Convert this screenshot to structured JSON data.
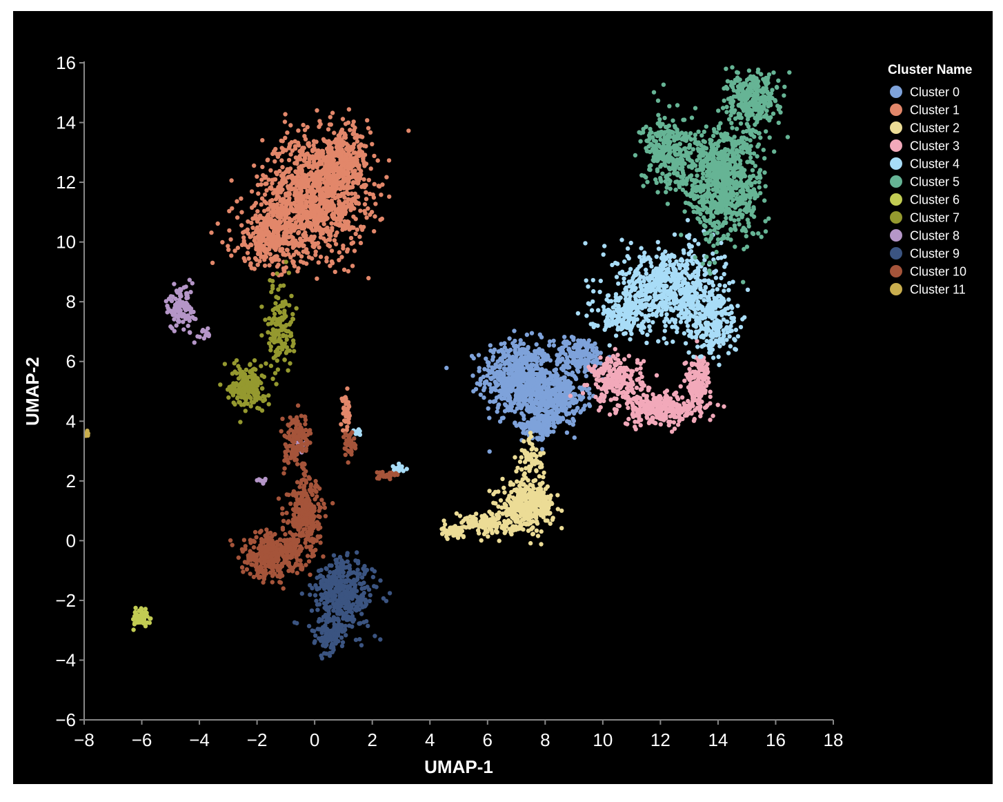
{
  "chart_data": {
    "type": "scatter",
    "title": "",
    "xlabel": "UMAP-1",
    "ylabel": "UMAP-2",
    "xlim": [
      -8,
      18
    ],
    "ylim": [
      -6,
      16
    ],
    "x_ticks": [
      -8,
      -6,
      -4,
      -2,
      0,
      2,
      4,
      6,
      8,
      10,
      12,
      14,
      16,
      18
    ],
    "y_ticks": [
      -6,
      -4,
      -2,
      0,
      2,
      4,
      6,
      8,
      10,
      12,
      14,
      16
    ],
    "grid": false,
    "background": "#000000",
    "legend": {
      "title": "Cluster Name",
      "position": "top-right"
    },
    "series": [
      {
        "name": "Cluster 0",
        "color": "#7ea2da",
        "blobs": [
          {
            "cx": 7.0,
            "cy": 5.5,
            "sx": 0.8,
            "sy": 0.8,
            "n": 520
          },
          {
            "cx": 8.2,
            "cy": 4.8,
            "sx": 0.8,
            "sy": 0.6,
            "n": 420
          },
          {
            "cx": 9.2,
            "cy": 6.2,
            "sx": 0.6,
            "sy": 0.4,
            "n": 200
          },
          {
            "cx": 7.8,
            "cy": 3.9,
            "sx": 0.4,
            "sy": 0.3,
            "n": 120
          }
        ]
      },
      {
        "name": "Cluster 1",
        "color": "#e2876a",
        "blobs": [
          {
            "cx": 0.0,
            "cy": 11.6,
            "sx": 1.2,
            "sy": 1.3,
            "n": 1100
          },
          {
            "cx": -1.5,
            "cy": 10.2,
            "sx": 0.9,
            "sy": 0.7,
            "n": 350
          },
          {
            "cx": 1.0,
            "cy": 12.8,
            "sx": 0.6,
            "sy": 0.6,
            "n": 250
          },
          {
            "cx": 1.1,
            "cy": 4.2,
            "sx": 0.12,
            "sy": 0.4,
            "n": 40
          }
        ]
      },
      {
        "name": "Cluster 2",
        "color": "#ecdc96",
        "blobs": [
          {
            "cx": 7.4,
            "cy": 1.2,
            "sx": 0.6,
            "sy": 0.5,
            "n": 360
          },
          {
            "cx": 6.0,
            "cy": 0.6,
            "sx": 0.8,
            "sy": 0.25,
            "n": 140
          },
          {
            "cx": 4.9,
            "cy": 0.3,
            "sx": 0.3,
            "sy": 0.12,
            "n": 50
          },
          {
            "cx": 7.5,
            "cy": 2.7,
            "sx": 0.3,
            "sy": 0.5,
            "n": 60
          }
        ]
      },
      {
        "name": "Cluster 3",
        "color": "#f2a9ba",
        "blobs": [
          {
            "cx": 10.5,
            "cy": 5.4,
            "sx": 0.6,
            "sy": 0.5,
            "n": 220
          },
          {
            "cx": 12.0,
            "cy": 4.4,
            "sx": 0.9,
            "sy": 0.35,
            "n": 280
          },
          {
            "cx": 13.3,
            "cy": 5.3,
            "sx": 0.3,
            "sy": 0.6,
            "n": 150
          }
        ]
      },
      {
        "name": "Cluster 4",
        "color": "#a8dcf7",
        "blobs": [
          {
            "cx": 12.3,
            "cy": 8.5,
            "sx": 1.2,
            "sy": 0.9,
            "n": 650
          },
          {
            "cx": 13.8,
            "cy": 7.3,
            "sx": 0.6,
            "sy": 0.8,
            "n": 250
          },
          {
            "cx": 10.6,
            "cy": 7.6,
            "sx": 0.7,
            "sy": 0.4,
            "n": 160
          },
          {
            "cx": 2.9,
            "cy": 2.4,
            "sx": 0.15,
            "sy": 0.08,
            "n": 25
          },
          {
            "cx": 1.5,
            "cy": 3.6,
            "sx": 0.1,
            "sy": 0.08,
            "n": 10
          }
        ]
      },
      {
        "name": "Cluster 5",
        "color": "#66b495",
        "blobs": [
          {
            "cx": 14.2,
            "cy": 12.0,
            "sx": 0.9,
            "sy": 1.3,
            "n": 800
          },
          {
            "cx": 12.3,
            "cy": 13.0,
            "sx": 0.6,
            "sy": 0.8,
            "n": 300
          },
          {
            "cx": 15.2,
            "cy": 14.8,
            "sx": 0.6,
            "sy": 0.6,
            "n": 300
          }
        ]
      },
      {
        "name": "Cluster 6",
        "color": "#c2cc53",
        "blobs": [
          {
            "cx": -6.0,
            "cy": -2.6,
            "sx": 0.2,
            "sy": 0.2,
            "n": 60
          }
        ]
      },
      {
        "name": "Cluster 7",
        "color": "#95992f",
        "blobs": [
          {
            "cx": -2.3,
            "cy": 5.2,
            "sx": 0.4,
            "sy": 0.5,
            "n": 200
          },
          {
            "cx": -1.2,
            "cy": 7.2,
            "sx": 0.3,
            "sy": 0.9,
            "n": 150
          }
        ]
      },
      {
        "name": "Cluster 8",
        "color": "#b596c8",
        "blobs": [
          {
            "cx": -4.6,
            "cy": 7.8,
            "sx": 0.3,
            "sy": 0.5,
            "n": 110
          },
          {
            "cx": -3.8,
            "cy": 6.9,
            "sx": 0.15,
            "sy": 0.1,
            "n": 15
          },
          {
            "cx": -1.8,
            "cy": 2.0,
            "sx": 0.1,
            "sy": 0.08,
            "n": 10
          },
          {
            "cx": -0.5,
            "cy": 3.2,
            "sx": 0.2,
            "sy": 0.2,
            "n": 12
          }
        ]
      },
      {
        "name": "Cluster 9",
        "color": "#3b5481",
        "blobs": [
          {
            "cx": 1.0,
            "cy": -1.8,
            "sx": 0.7,
            "sy": 0.8,
            "n": 420
          },
          {
            "cx": 0.5,
            "cy": -3.2,
            "sx": 0.35,
            "sy": 0.4,
            "n": 100
          }
        ]
      },
      {
        "name": "Cluster 10",
        "color": "#a5543a",
        "blobs": [
          {
            "cx": -1.5,
            "cy": -0.5,
            "sx": 0.7,
            "sy": 0.5,
            "n": 350
          },
          {
            "cx": -0.3,
            "cy": 0.8,
            "sx": 0.4,
            "sy": 0.8,
            "n": 300
          },
          {
            "cx": -0.6,
            "cy": 3.3,
            "sx": 0.3,
            "sy": 0.6,
            "n": 130
          },
          {
            "cx": 1.2,
            "cy": 3.3,
            "sx": 0.15,
            "sy": 0.3,
            "n": 40
          },
          {
            "cx": 2.5,
            "cy": 2.2,
            "sx": 0.3,
            "sy": 0.08,
            "n": 25
          }
        ]
      },
      {
        "name": "Cluster 11",
        "color": "#c9ae4e",
        "blobs": [
          {
            "cx": -7.9,
            "cy": 3.6,
            "sx": 0.04,
            "sy": 0.06,
            "n": 12
          }
        ]
      }
    ]
  }
}
